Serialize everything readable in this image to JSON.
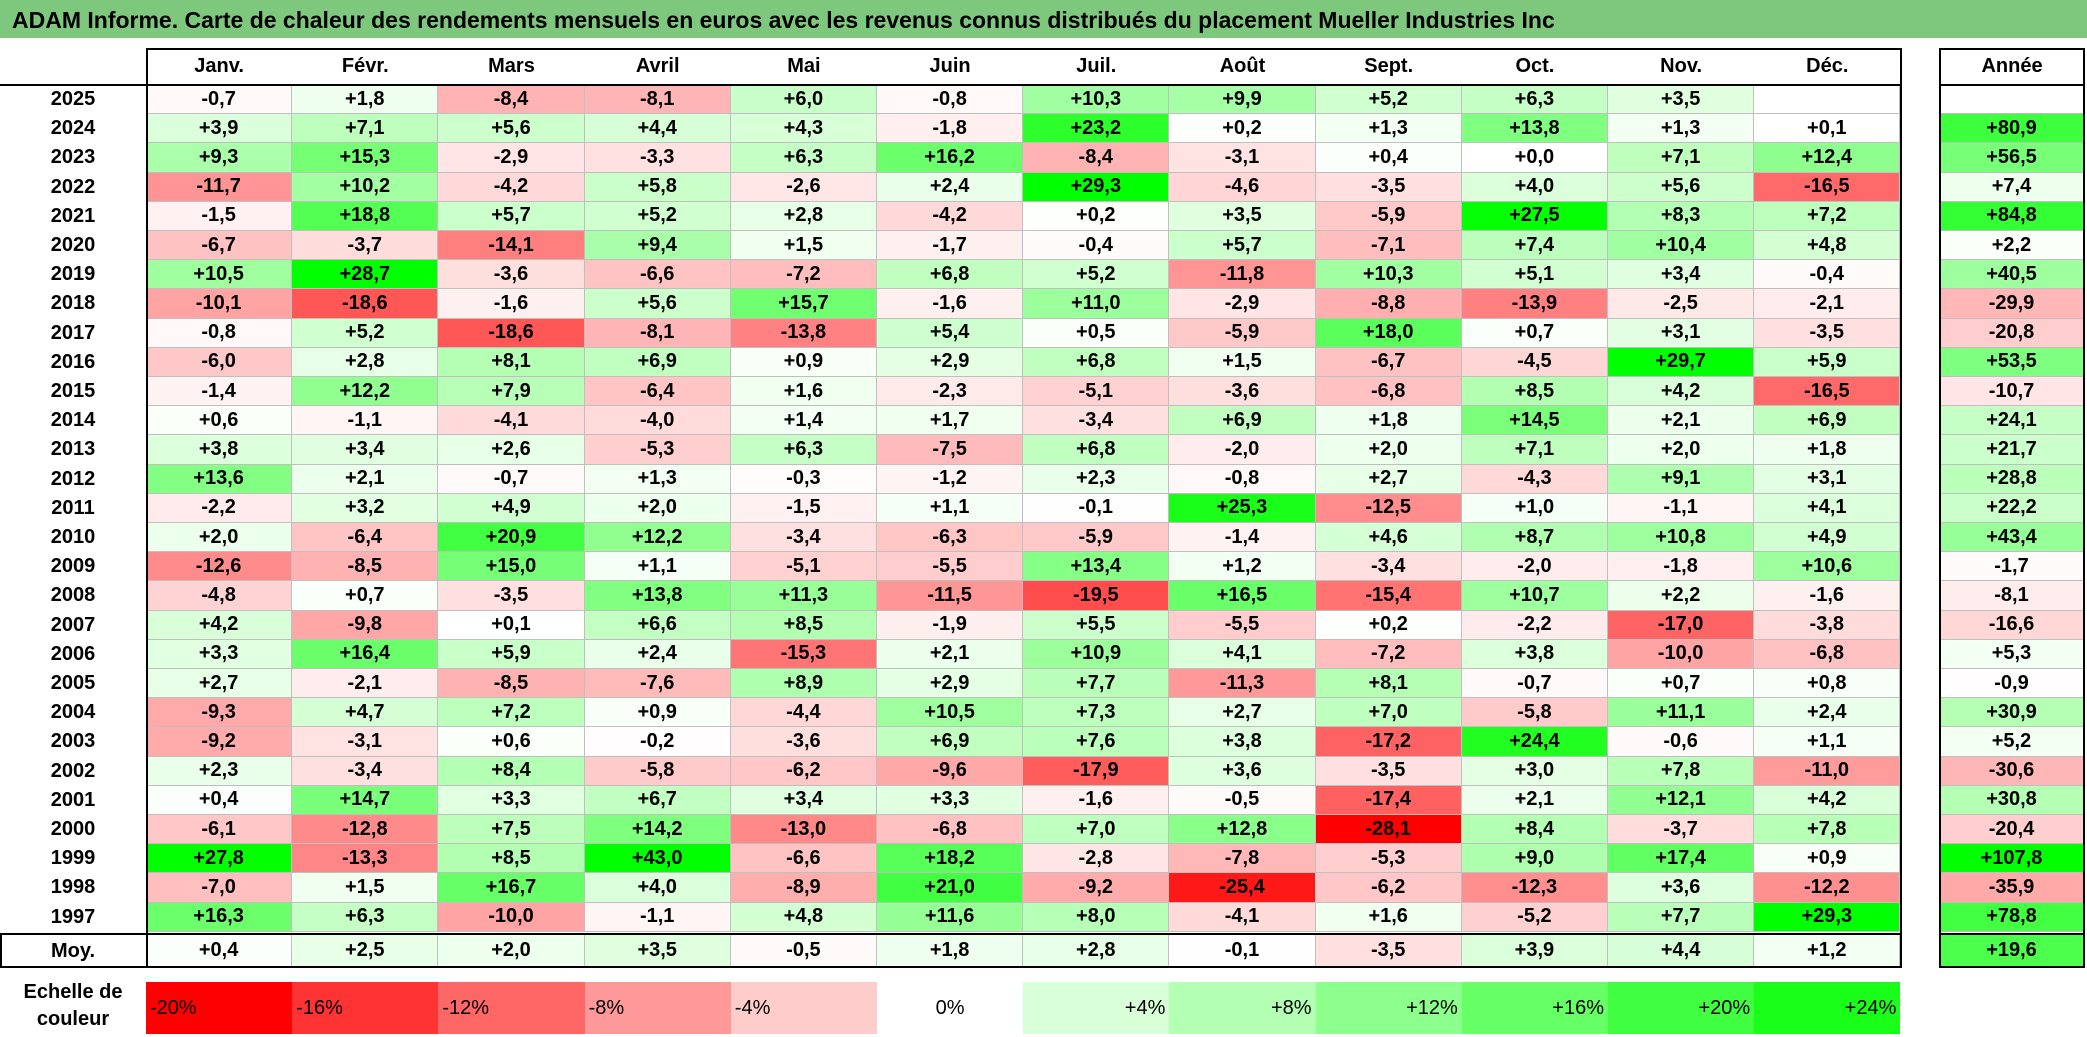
{
  "title": "ADAM Informe. Carte de chaleur des rendements mensuels en euros avec les revenus connus distribués du placement Mueller Industries Inc",
  "chart_data": {
    "type": "heatmap",
    "columns": [
      "Janv.",
      "Févr.",
      "Mars",
      "Avril",
      "Mai",
      "Juin",
      "Juil.",
      "Août",
      "Sept.",
      "Oct.",
      "Nov.",
      "Déc."
    ],
    "year_column_label": "Année",
    "average_row_label": "Moy.",
    "rows": [
      {
        "year": "2025",
        "values": [
          "-0,7",
          "+1,8",
          "-8,4",
          "-8,1",
          "+6,0",
          "-0,8",
          "+10,3",
          "+9,9",
          "+5,2",
          "+6,3",
          "+3,5",
          ""
        ],
        "annual": ""
      },
      {
        "year": "2024",
        "values": [
          "+3,9",
          "+7,1",
          "+5,6",
          "+4,4",
          "+4,3",
          "-1,8",
          "+23,2",
          "+0,2",
          "+1,3",
          "+13,8",
          "+1,3",
          "+0,1"
        ],
        "annual": "+80,9"
      },
      {
        "year": "2023",
        "values": [
          "+9,3",
          "+15,3",
          "-2,9",
          "-3,3",
          "+6,3",
          "+16,2",
          "-8,4",
          "-3,1",
          "+0,4",
          "+0,0",
          "+7,1",
          "+12,4"
        ],
        "annual": "+56,5"
      },
      {
        "year": "2022",
        "values": [
          "-11,7",
          "+10,2",
          "-4,2",
          "+5,8",
          "-2,6",
          "+2,4",
          "+29,3",
          "-4,6",
          "-3,5",
          "+4,0",
          "+5,6",
          "-16,5"
        ],
        "annual": "+7,4"
      },
      {
        "year": "2021",
        "values": [
          "-1,5",
          "+18,8",
          "+5,7",
          "+5,2",
          "+2,8",
          "-4,2",
          "+0,2",
          "+3,5",
          "-5,9",
          "+27,5",
          "+8,3",
          "+7,2"
        ],
        "annual": "+84,8"
      },
      {
        "year": "2020",
        "values": [
          "-6,7",
          "-3,7",
          "-14,1",
          "+9,4",
          "+1,5",
          "-1,7",
          "-0,4",
          "+5,7",
          "-7,1",
          "+7,4",
          "+10,4",
          "+4,8"
        ],
        "annual": "+2,2"
      },
      {
        "year": "2019",
        "values": [
          "+10,5",
          "+28,7",
          "-3,6",
          "-6,6",
          "-7,2",
          "+6,8",
          "+5,2",
          "-11,8",
          "+10,3",
          "+5,1",
          "+3,4",
          "-0,4"
        ],
        "annual": "+40,5"
      },
      {
        "year": "2018",
        "values": [
          "-10,1",
          "-18,6",
          "-1,6",
          "+5,6",
          "+15,7",
          "-1,6",
          "+11,0",
          "-2,9",
          "-8,8",
          "-13,9",
          "-2,5",
          "-2,1"
        ],
        "annual": "-29,9"
      },
      {
        "year": "2017",
        "values": [
          "-0,8",
          "+5,2",
          "-18,6",
          "-8,1",
          "-13,8",
          "+5,4",
          "+0,5",
          "-5,9",
          "+18,0",
          "+0,7",
          "+3,1",
          "-3,5"
        ],
        "annual": "-20,8"
      },
      {
        "year": "2016",
        "values": [
          "-6,0",
          "+2,8",
          "+8,1",
          "+6,9",
          "+0,9",
          "+2,9",
          "+6,8",
          "+1,5",
          "-6,7",
          "-4,5",
          "+29,7",
          "+5,9"
        ],
        "annual": "+53,5"
      },
      {
        "year": "2015",
        "values": [
          "-1,4",
          "+12,2",
          "+7,9",
          "-6,4",
          "+1,6",
          "-2,3",
          "-5,1",
          "-3,6",
          "-6,8",
          "+8,5",
          "+4,2",
          "-16,5"
        ],
        "annual": "-10,7"
      },
      {
        "year": "2014",
        "values": [
          "+0,6",
          "-1,1",
          "-4,1",
          "-4,0",
          "+1,4",
          "+1,7",
          "-3,4",
          "+6,9",
          "+1,8",
          "+14,5",
          "+2,1",
          "+6,9"
        ],
        "annual": "+24,1"
      },
      {
        "year": "2013",
        "values": [
          "+3,8",
          "+3,4",
          "+2,6",
          "-5,3",
          "+6,3",
          "-7,5",
          "+6,8",
          "-2,0",
          "+2,0",
          "+7,1",
          "+2,0",
          "+1,8"
        ],
        "annual": "+21,7"
      },
      {
        "year": "2012",
        "values": [
          "+13,6",
          "+2,1",
          "-0,7",
          "+1,3",
          "-0,3",
          "-1,2",
          "+2,3",
          "-0,8",
          "+2,7",
          "-4,3",
          "+9,1",
          "+3,1"
        ],
        "annual": "+28,8"
      },
      {
        "year": "2011",
        "values": [
          "-2,2",
          "+3,2",
          "+4,9",
          "+2,0",
          "-1,5",
          "+1,1",
          "-0,1",
          "+25,3",
          "-12,5",
          "+1,0",
          "-1,1",
          "+4,1"
        ],
        "annual": "+22,2"
      },
      {
        "year": "2010",
        "values": [
          "+2,0",
          "-6,4",
          "+20,9",
          "+12,2",
          "-3,4",
          "-6,3",
          "-5,9",
          "-1,4",
          "+4,6",
          "+8,7",
          "+10,8",
          "+4,9"
        ],
        "annual": "+43,4"
      },
      {
        "year": "2009",
        "values": [
          "-12,6",
          "-8,5",
          "+15,0",
          "+1,1",
          "-5,1",
          "-5,5",
          "+13,4",
          "+1,2",
          "-3,4",
          "-2,0",
          "-1,8",
          "+10,6"
        ],
        "annual": "-1,7"
      },
      {
        "year": "2008",
        "values": [
          "-4,8",
          "+0,7",
          "-3,5",
          "+13,8",
          "+11,3",
          "-11,5",
          "-19,5",
          "+16,5",
          "-15,4",
          "+10,7",
          "+2,2",
          "-1,6"
        ],
        "annual": "-8,1"
      },
      {
        "year": "2007",
        "values": [
          "+4,2",
          "-9,8",
          "+0,1",
          "+6,6",
          "+8,5",
          "-1,9",
          "+5,5",
          "-5,5",
          "+0,2",
          "-2,2",
          "-17,0",
          "-3,8"
        ],
        "annual": "-16,6"
      },
      {
        "year": "2006",
        "values": [
          "+3,3",
          "+16,4",
          "+5,9",
          "+2,4",
          "-15,3",
          "+2,1",
          "+10,9",
          "+4,1",
          "-7,2",
          "+3,8",
          "-10,0",
          "-6,8"
        ],
        "annual": "+5,3"
      },
      {
        "year": "2005",
        "values": [
          "+2,7",
          "-2,1",
          "-8,5",
          "-7,6",
          "+8,9",
          "+2,9",
          "+7,7",
          "-11,3",
          "+8,1",
          "-0,7",
          "+0,7",
          "+0,8"
        ],
        "annual": "-0,9"
      },
      {
        "year": "2004",
        "values": [
          "-9,3",
          "+4,7",
          "+7,2",
          "+0,9",
          "-4,4",
          "+10,5",
          "+7,3",
          "+2,7",
          "+7,0",
          "-5,8",
          "+11,1",
          "+2,4"
        ],
        "annual": "+30,9"
      },
      {
        "year": "2003",
        "values": [
          "-9,2",
          "-3,1",
          "+0,6",
          "-0,2",
          "-3,6",
          "+6,9",
          "+7,6",
          "+3,8",
          "-17,2",
          "+24,4",
          "-0,6",
          "+1,1"
        ],
        "annual": "+5,2"
      },
      {
        "year": "2002",
        "values": [
          "+2,3",
          "-3,4",
          "+8,4",
          "-5,8",
          "-6,2",
          "-9,6",
          "-17,9",
          "+3,6",
          "-3,5",
          "+3,0",
          "+7,8",
          "-11,0"
        ],
        "annual": "-30,6"
      },
      {
        "year": "2001",
        "values": [
          "+0,4",
          "+14,7",
          "+3,3",
          "+6,7",
          "+3,4",
          "+3,3",
          "-1,6",
          "-0,5",
          "-17,4",
          "+2,1",
          "+12,1",
          "+4,2"
        ],
        "annual": "+30,8"
      },
      {
        "year": "2000",
        "values": [
          "-6,1",
          "-12,8",
          "+7,5",
          "+14,2",
          "-13,0",
          "-6,8",
          "+7,0",
          "+12,8",
          "-28,1",
          "+8,4",
          "-3,7",
          "+7,8"
        ],
        "annual": "-20,4"
      },
      {
        "year": "1999",
        "values": [
          "+27,8",
          "-13,3",
          "+8,5",
          "+43,0",
          "-6,6",
          "+18,2",
          "-2,8",
          "-7,8",
          "-5,3",
          "+9,0",
          "+17,4",
          "+0,9"
        ],
        "annual": "+107,8"
      },
      {
        "year": "1998",
        "values": [
          "-7,0",
          "+1,5",
          "+16,7",
          "+4,0",
          "-8,9",
          "+21,0",
          "-9,2",
          "-25,4",
          "-6,2",
          "-12,3",
          "+3,6",
          "-12,2"
        ],
        "annual": "-35,9"
      },
      {
        "year": "1997",
        "values": [
          "+16,3",
          "+6,3",
          "-10,0",
          "-1,1",
          "+4,8",
          "+11,6",
          "+8,0",
          "-4,1",
          "+1,6",
          "-5,2",
          "+7,7",
          "+29,3"
        ],
        "annual": "+78,8"
      }
    ],
    "average": {
      "values": [
        "+0,4",
        "+2,5",
        "+2,0",
        "+3,5",
        "-0,5",
        "+1,8",
        "+2,8",
        "-0,1",
        "-3,5",
        "+3,9",
        "+4,4",
        "+1,2"
      ],
      "annual": "+19,6"
    },
    "scale": {
      "label_line1": "Echelle de",
      "label_line2": "couleur",
      "stops": [
        {
          "label": "-20%",
          "value": -20,
          "color": "#ff0000"
        },
        {
          "label": "-16%",
          "value": -16,
          "color": "#ff3333"
        },
        {
          "label": "-12%",
          "value": -12,
          "color": "#ff6666"
        },
        {
          "label": "-8%",
          "value": -8,
          "color": "#ff9999"
        },
        {
          "label": "-4%",
          "value": -4,
          "color": "#ffcccc"
        },
        {
          "label": "0%",
          "value": 0,
          "color": "#ffffff"
        },
        {
          "label": "+4%",
          "value": 4,
          "color": "#d9ffd9"
        },
        {
          "label": "+8%",
          "value": 8,
          "color": "#b3ffb3"
        },
        {
          "label": "+12%",
          "value": 12,
          "color": "#8cff8c"
        },
        {
          "label": "+16%",
          "value": 16,
          "color": "#66ff66"
        },
        {
          "label": "+20%",
          "value": 20,
          "color": "#40ff40"
        },
        {
          "label": "+24%",
          "value": 24,
          "color": "#1aff1a"
        }
      ]
    },
    "colors": {
      "negative_max": "#ff0000",
      "zero": "#ffffff",
      "positive_max": "#00ff00",
      "title_bar": "#7ec87e"
    }
  }
}
